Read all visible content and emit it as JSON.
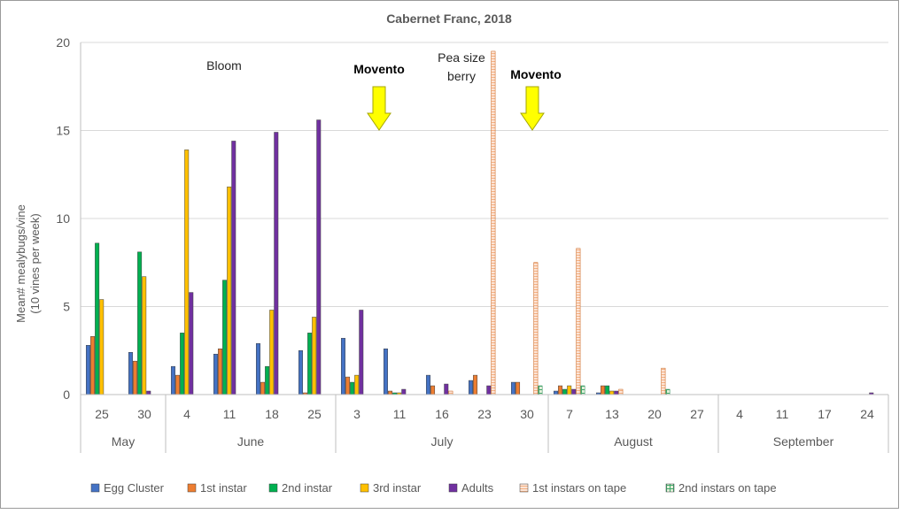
{
  "chart_data": {
    "type": "bar",
    "title": "Cabernet Franc, 2018",
    "ylabel": "Mean#  mealybugs/vine",
    "ylabel_sub": "(10 vines per week)",
    "xlabel": "",
    "ylim": [
      0,
      20
    ],
    "yticks": [
      0,
      5,
      10,
      15,
      20
    ],
    "grid": true,
    "legend_position": "bottom",
    "categories": [
      "25",
      "30",
      "4",
      "11",
      "18",
      "25",
      "3",
      "11",
      "16",
      "23",
      "30",
      "7",
      "13",
      "20",
      "27",
      "4",
      "11",
      "17",
      "24"
    ],
    "months": [
      {
        "label": "May",
        "count": 2
      },
      {
        "label": "June",
        "count": 4
      },
      {
        "label": "July",
        "count": 5
      },
      {
        "label": "August",
        "count": 4
      },
      {
        "label": "September",
        "count": 4
      }
    ],
    "series": [
      {
        "name": "Egg Cluster",
        "color": "#4472C4",
        "pattern": "solid",
        "values": [
          2.8,
          2.4,
          1.6,
          2.3,
          2.9,
          2.5,
          3.2,
          2.6,
          1.1,
          0.8,
          0.7,
          0.2,
          0.1,
          0,
          0,
          0,
          0,
          0,
          0
        ]
      },
      {
        "name": "1st instar",
        "color": "#ED7D31",
        "pattern": "solid",
        "values": [
          3.3,
          1.9,
          1.1,
          2.6,
          0.7,
          0.1,
          1.0,
          0.2,
          0.5,
          1.1,
          0.7,
          0.5,
          0.5,
          0,
          0,
          0,
          0,
          0,
          0
        ]
      },
      {
        "name": "2nd instar",
        "color": "#00B050",
        "pattern": "solid",
        "values": [
          8.6,
          8.1,
          3.5,
          6.5,
          1.6,
          3.5,
          0.7,
          0.1,
          0,
          0,
          0,
          0.3,
          0.5,
          0,
          0,
          0,
          0,
          0,
          0
        ]
      },
      {
        "name": "3rd instar",
        "color": "#FFC000",
        "pattern": "solid",
        "values": [
          5.4,
          6.7,
          13.9,
          11.8,
          4.8,
          4.4,
          1.1,
          0.1,
          0,
          0,
          0,
          0.5,
          0.2,
          0,
          0,
          0,
          0,
          0,
          0
        ]
      },
      {
        "name": "Adults",
        "color": "#7030A0",
        "pattern": "solid",
        "values": [
          0,
          0.2,
          5.8,
          14.4,
          14.9,
          15.6,
          4.8,
          0.3,
          0.6,
          0.5,
          0,
          0.3,
          0.2,
          0,
          0,
          0,
          0,
          0,
          0.1
        ]
      },
      {
        "name": "1st instars on tape",
        "color": "#F4B183",
        "pattern": "hstripe",
        "values": [
          0,
          0,
          0,
          0,
          0,
          0,
          0,
          0,
          0.2,
          19.5,
          7.5,
          8.3,
          0.3,
          1.5,
          0,
          0,
          0,
          0,
          0
        ]
      },
      {
        "name": "2nd instars on tape",
        "color": "#9DD7B4",
        "pattern": "grid",
        "values": [
          0,
          0,
          0,
          0,
          0,
          0,
          0,
          0,
          0,
          0,
          0.5,
          0.5,
          0,
          0.3,
          0,
          0,
          0,
          0,
          0
        ]
      }
    ],
    "annotations": [
      {
        "text": "Bloom",
        "bold": false
      },
      {
        "text": "Movento",
        "bold": true,
        "arrow": true
      },
      {
        "text": "Pea size",
        "bold": false
      },
      {
        "text": "berry",
        "bold": false
      },
      {
        "text": "Movento",
        "bold": true,
        "arrow": true
      }
    ],
    "arrow_color": "#FFFF00",
    "arrow_stroke": "#A6A600"
  }
}
